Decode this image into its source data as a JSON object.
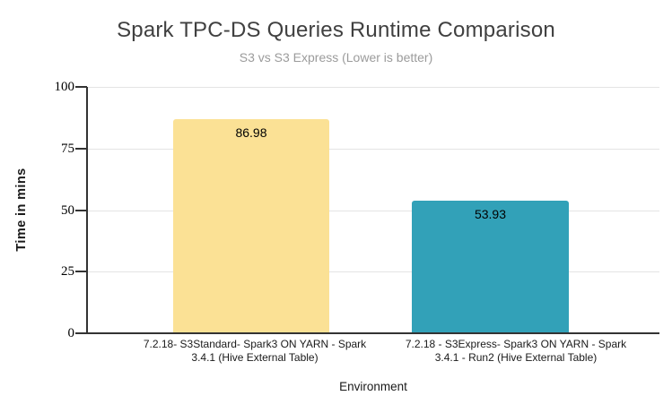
{
  "chart_data": {
    "type": "bar",
    "title": "Spark TPC-DS Queries Runtime Comparison",
    "subtitle": "S3 vs S3 Express (Lower is better)",
    "xlabel": "Environment",
    "ylabel": "Time in mins",
    "categories": [
      "7.2.18- S3Standard- Spark3 ON YARN - Spark 3.4.1 (Hive External Table)",
      "7.2.18 - S3Express- Spark3 ON YARN - Spark 3.4.1 - Run2 (Hive External Table)"
    ],
    "category_lines": [
      [
        "7.2.18- S3Standard- Spark3 ON YARN - Spark",
        "3.4.1 (Hive External Table)"
      ],
      [
        "7.2.18 - S3Express- Spark3 ON YARN - Spark",
        "3.4.1 - Run2 (Hive External Table)"
      ]
    ],
    "values": [
      86.98,
      53.93
    ],
    "value_labels": [
      "86.98",
      "53.93"
    ],
    "bar_colors": [
      "#FBE195",
      "#32A1B8"
    ],
    "ylim": [
      0,
      100
    ],
    "yticks": [
      0,
      25,
      50,
      75,
      100
    ],
    "ytick_labels_top_to_bottom": [
      "100",
      "75",
      "50",
      "25",
      "0"
    ],
    "grid": true,
    "legend": false
  },
  "colors": {
    "background": "#ffffff",
    "bar_s3standard": "#FBE195",
    "bar_s3express": "#32A1B8",
    "gridline": "#e4e4e4",
    "axis": "#333333",
    "title_text": "#404040",
    "subtitle_text": "#9b9b9b"
  }
}
